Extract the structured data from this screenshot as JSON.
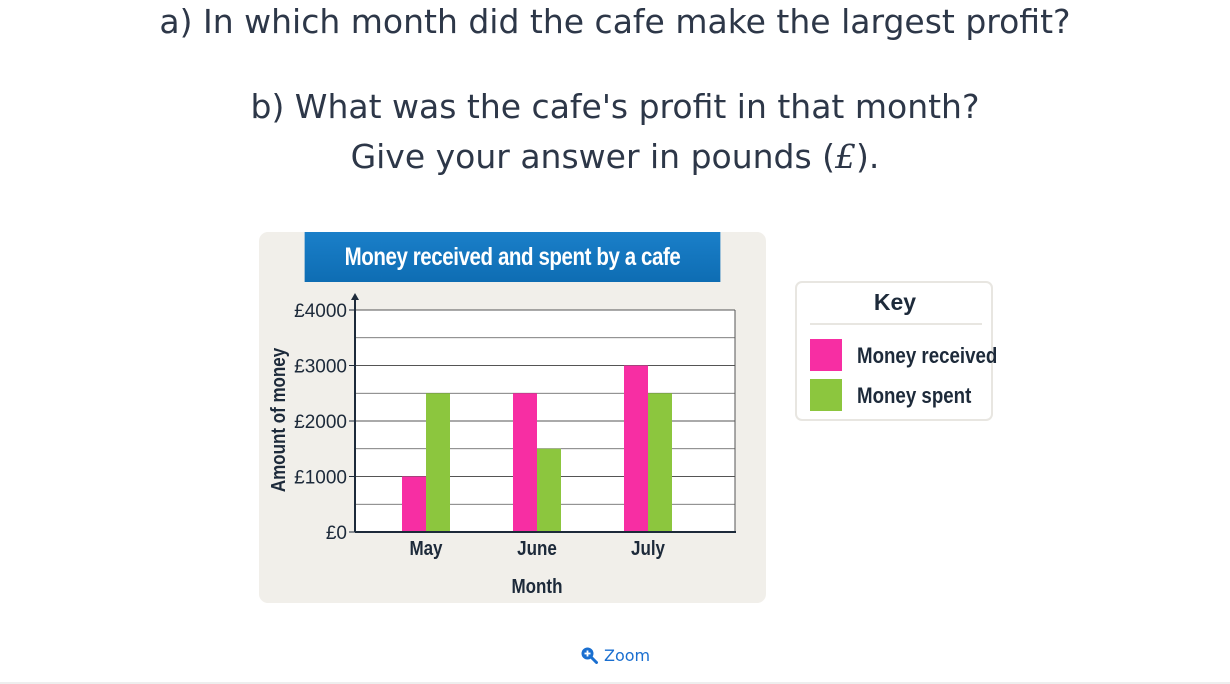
{
  "question_a": "a) In which month did the cafe make the largest profit?",
  "question_b_line1": "b) What was the cafe's profit in that month?",
  "question_b_line2_prefix": "Give your answer in pounds (",
  "question_b_pound_symbol": "£",
  "question_b_line2_suffix": ").",
  "key": {
    "title": "Key",
    "items": [
      {
        "label": "Money received",
        "color": "#f72ea3"
      },
      {
        "label": "Money spent",
        "color": "#8cc63e"
      }
    ]
  },
  "zoom_label": "Zoom",
  "chart_data": {
    "type": "bar",
    "title": "Money received and spent by a cafe",
    "xlabel": "Month",
    "ylabel": "Amount of money",
    "categories": [
      "May",
      "June",
      "July"
    ],
    "series": [
      {
        "name": "Money received",
        "values": [
          1000,
          2500,
          3000
        ],
        "color": "#f72ea3"
      },
      {
        "name": "Money spent",
        "values": [
          2500,
          1500,
          2500
        ],
        "color": "#8cc63e"
      }
    ],
    "ylim": [
      0,
      4000
    ],
    "y_ticks": [
      0,
      1000,
      2000,
      3000,
      4000
    ],
    "y_tick_labels": [
      "£0",
      "£1000",
      "£2000",
      "£3000",
      "£4000"
    ],
    "minor_gridlines_per_major": 2,
    "grid": true,
    "legend_position": "right"
  }
}
